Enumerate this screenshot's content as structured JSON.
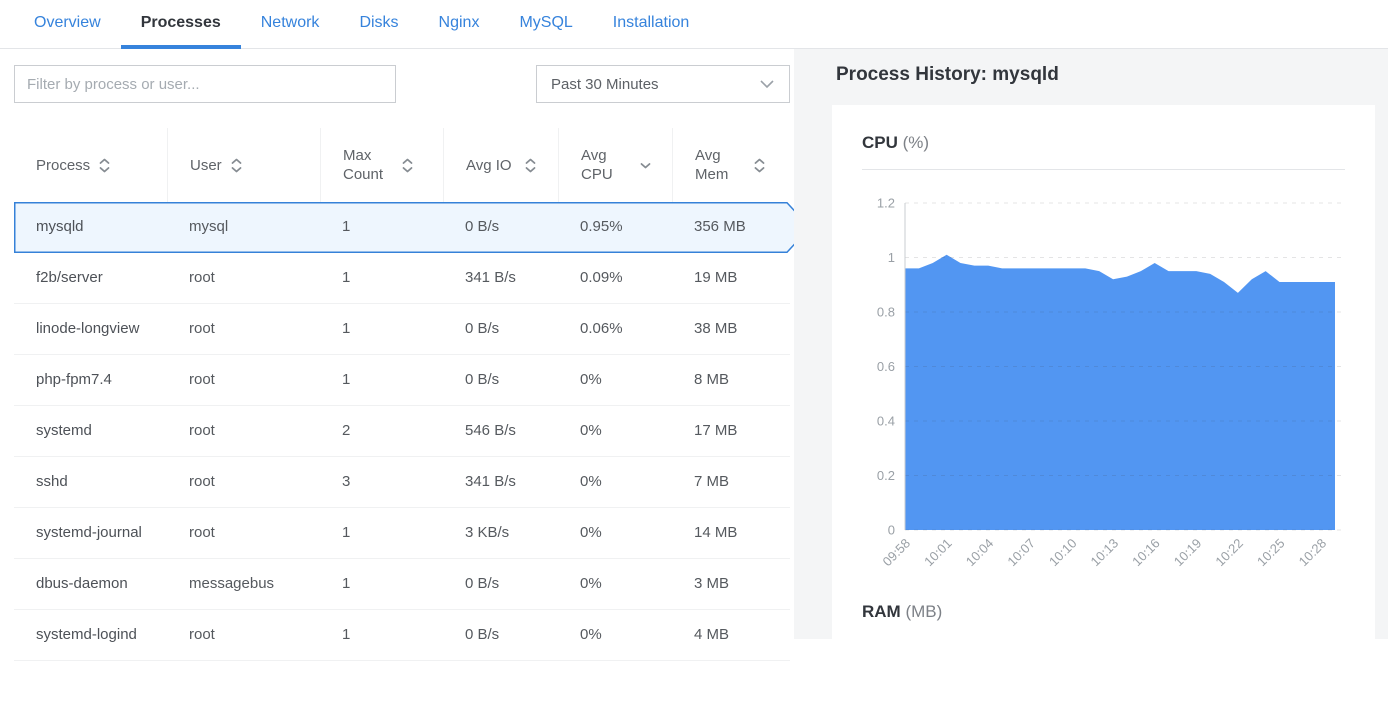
{
  "tabs": {
    "items": [
      {
        "label": "Overview",
        "active": false
      },
      {
        "label": "Processes",
        "active": true
      },
      {
        "label": "Network",
        "active": false
      },
      {
        "label": "Disks",
        "active": false
      },
      {
        "label": "Nginx",
        "active": false
      },
      {
        "label": "MySQL",
        "active": false
      },
      {
        "label": "Installation",
        "active": false
      }
    ]
  },
  "toolbar": {
    "filter_placeholder": "Filter by process or user...",
    "time_range_value": "Past 30 Minutes",
    "time_range_icon": "chevron-down-icon"
  },
  "process_table": {
    "columns": [
      {
        "label": "Process",
        "sort": "both",
        "icon": "sort-up-down-icon"
      },
      {
        "label": "User",
        "sort": "both",
        "icon": "sort-up-down-icon"
      },
      {
        "label": "Max Count",
        "sort": "both",
        "icon": "sort-up-down-icon"
      },
      {
        "label": "Avg IO",
        "sort": "both",
        "icon": "sort-up-down-icon"
      },
      {
        "label": "Avg CPU",
        "sort": "desc",
        "icon": "chevron-down-icon"
      },
      {
        "label": "Avg Mem",
        "sort": "both",
        "icon": "sort-up-down-icon"
      }
    ],
    "rows": [
      {
        "process": "mysqld",
        "user": "mysql",
        "max_count": "1",
        "avg_io": "0 B/s",
        "avg_cpu": "0.95%",
        "avg_mem": "356 MB",
        "selected": true
      },
      {
        "process": "f2b/server",
        "user": "root",
        "max_count": "1",
        "avg_io": "341 B/s",
        "avg_cpu": "0.09%",
        "avg_mem": "19 MB",
        "selected": false
      },
      {
        "process": "linode-longview",
        "user": "root",
        "max_count": "1",
        "avg_io": "0 B/s",
        "avg_cpu": "0.06%",
        "avg_mem": "38 MB",
        "selected": false
      },
      {
        "process": "php-fpm7.4",
        "user": "root",
        "max_count": "1",
        "avg_io": "0 B/s",
        "avg_cpu": "0%",
        "avg_mem": "8 MB",
        "selected": false
      },
      {
        "process": "systemd",
        "user": "root",
        "max_count": "2",
        "avg_io": "546 B/s",
        "avg_cpu": "0%",
        "avg_mem": "17 MB",
        "selected": false
      },
      {
        "process": "sshd",
        "user": "root",
        "max_count": "3",
        "avg_io": "341 B/s",
        "avg_cpu": "0%",
        "avg_mem": "7 MB",
        "selected": false
      },
      {
        "process": "systemd-journal",
        "user": "root",
        "max_count": "1",
        "avg_io": "3 KB/s",
        "avg_cpu": "0%",
        "avg_mem": "14 MB",
        "selected": false
      },
      {
        "process": "dbus-daemon",
        "user": "messagebus",
        "max_count": "1",
        "avg_io": "0 B/s",
        "avg_cpu": "0%",
        "avg_mem": "3 MB",
        "selected": false
      },
      {
        "process": "systemd-logind",
        "user": "root",
        "max_count": "1",
        "avg_io": "0 B/s",
        "avg_cpu": "0%",
        "avg_mem": "4 MB",
        "selected": false
      }
    ]
  },
  "history_panel": {
    "title": "Process History: mysqld",
    "sections": [
      {
        "title": "CPU",
        "unit": "(%)"
      },
      {
        "title": "RAM",
        "unit": "(MB)"
      }
    ]
  },
  "chart_data": {
    "type": "area",
    "title": "CPU (%)",
    "xlabel": "",
    "ylabel": "CPU %",
    "ylim": [
      0,
      1.2
    ],
    "yticks": [
      "0",
      "0.2",
      "0.4",
      "0.6",
      "0.8",
      "1",
      "1.2"
    ],
    "grid": "dashed-horizontal",
    "legend": "none",
    "x": [
      "09:58",
      "09:59",
      "10:00",
      "10:01",
      "10:02",
      "10:03",
      "10:04",
      "10:05",
      "10:06",
      "10:07",
      "10:08",
      "10:09",
      "10:10",
      "10:11",
      "10:12",
      "10:13",
      "10:14",
      "10:15",
      "10:16",
      "10:17",
      "10:18",
      "10:19",
      "10:20",
      "10:21",
      "10:22",
      "10:23",
      "10:24",
      "10:25",
      "10:26",
      "10:27",
      "10:28"
    ],
    "values": [
      0.96,
      0.96,
      0.98,
      1.01,
      0.98,
      0.97,
      0.97,
      0.96,
      0.96,
      0.96,
      0.96,
      0.96,
      0.96,
      0.96,
      0.95,
      0.92,
      0.93,
      0.95,
      0.98,
      0.95,
      0.95,
      0.95,
      0.94,
      0.91,
      0.87,
      0.92,
      0.95,
      0.91,
      0.91,
      0.91,
      0.91
    ],
    "xtick_every": 3,
    "xtick_labels_shown": [
      "09:58",
      "10:01",
      "10:04",
      "10:07",
      "10:10",
      "10:13",
      "10:16",
      "10:19",
      "10:22",
      "10:25",
      "10:28"
    ]
  },
  "colors": {
    "accent_blue": "#3683dc",
    "chart_fill": "#5296f2",
    "selected_row_bg": "#eef6fe",
    "selected_row_border": "#3581d8",
    "text_dark": "#32363c",
    "text_gray": "#606469",
    "axis_label": "#9aa0a6",
    "border_light": "#e3e5e8",
    "panel_bg": "#f4f5f6"
  }
}
